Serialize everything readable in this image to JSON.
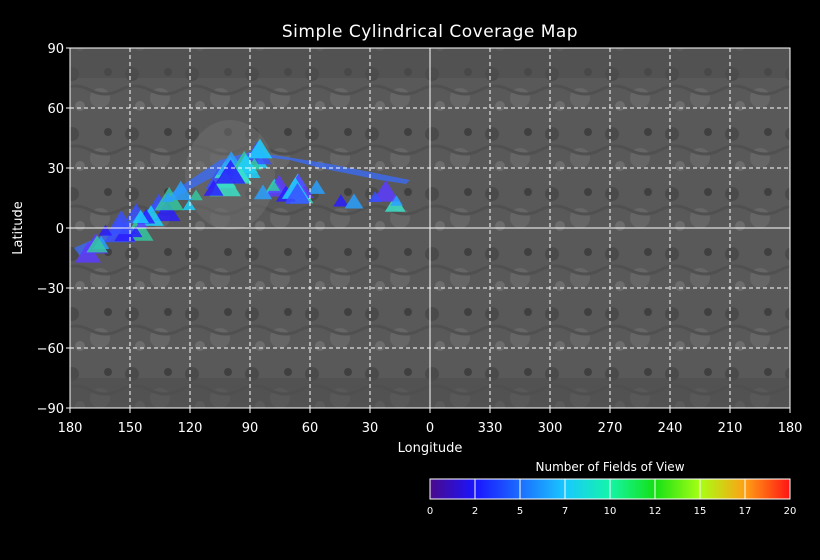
{
  "title": "Simple Cylindrical Coverage Map",
  "chart_data": {
    "type": "heatmap",
    "projection": "simple-cylindrical",
    "title": "Simple Cylindrical Coverage Map",
    "xlabel": "Longitude",
    "ylabel": "Latitude",
    "x_ticks": [
      "180",
      "150",
      "120",
      "90",
      "60",
      "30",
      "0",
      "330",
      "300",
      "270",
      "240",
      "210",
      "180"
    ],
    "y_ticks": [
      "90",
      "60",
      "30",
      "0",
      "−30",
      "−60",
      "−90"
    ],
    "grid": true,
    "basemap": "grayscale surface mosaic",
    "coverage_footprint": {
      "description_points_lon_lat": [
        [
          175,
          -14
        ],
        [
          160,
          -6
        ],
        [
          145,
          5
        ],
        [
          130,
          14
        ],
        [
          115,
          22
        ],
        [
          100,
          30
        ],
        [
          88,
          36
        ],
        [
          70,
          34
        ],
        [
          55,
          30
        ],
        [
          40,
          27
        ],
        [
          25,
          24
        ],
        [
          12,
          22
        ],
        [
          10,
          24
        ],
        [
          30,
          28
        ],
        [
          50,
          32
        ],
        [
          75,
          36
        ],
        [
          90,
          38
        ],
        [
          105,
          34
        ],
        [
          120,
          24
        ],
        [
          140,
          10
        ],
        [
          160,
          -2
        ],
        [
          178,
          -10
        ]
      ],
      "dominant_count_range": [
        2,
        7
      ]
    },
    "colorbar": {
      "title": "Number of Fields of View",
      "min": 0,
      "max": 20,
      "tick_labels": [
        "0",
        "2",
        "5",
        "7",
        "10",
        "12",
        "15",
        "17",
        "20"
      ],
      "colors": [
        "#4a0a8a",
        "#1a14ff",
        "#1b6dff",
        "#19c8ff",
        "#14f5a8",
        "#14e014",
        "#a8ff14",
        "#ffa014",
        "#ff1414"
      ]
    }
  }
}
